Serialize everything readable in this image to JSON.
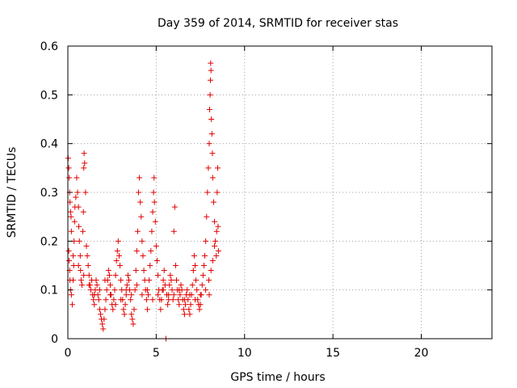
{
  "chart_data": {
    "type": "scatter",
    "title": "Day 359 of 2014, SRMTID for receiver stas",
    "xlabel": "GPS time / hours",
    "ylabel": "SRMTID / TECUs",
    "xlim": [
      0,
      24
    ],
    "ylim": [
      0,
      0.6
    ],
    "xticks": [
      0,
      5,
      10,
      15,
      20
    ],
    "xtick_labels": [
      "0",
      "5",
      "10",
      "15",
      "20"
    ],
    "yticks": [
      0,
      0.1,
      0.2,
      0.3,
      0.4,
      0.5,
      0.6
    ],
    "ytick_labels": [
      "0",
      "0.1",
      "0.2",
      "0.3",
      "0.4",
      "0.5",
      "0.6"
    ],
    "grid": true,
    "marker": "+",
    "color": "#e00000",
    "series": [
      {
        "name": "SRMTID",
        "points": [
          [
            0.02,
            0.37
          ],
          [
            0.05,
            0.35
          ],
          [
            0.08,
            0.33
          ],
          [
            0.1,
            0.3
          ],
          [
            0.12,
            0.28
          ],
          [
            0.15,
            0.26
          ],
          [
            0.18,
            0.25
          ],
          [
            0.2,
            0.22
          ],
          [
            0.05,
            0.18
          ],
          [
            0.07,
            0.16
          ],
          [
            0.1,
            0.14
          ],
          [
            0.12,
            0.12
          ],
          [
            0.15,
            0.1
          ],
          [
            0.2,
            0.09
          ],
          [
            0.25,
            0.07
          ],
          [
            0.3,
            0.12
          ],
          [
            0.33,
            0.15
          ],
          [
            0.35,
            0.2
          ],
          [
            0.38,
            0.24
          ],
          [
            0.4,
            0.27
          ],
          [
            0.45,
            0.29
          ],
          [
            0.5,
            0.33
          ],
          [
            0.55,
            0.3
          ],
          [
            0.6,
            0.27
          ],
          [
            0.62,
            0.23
          ],
          [
            0.65,
            0.2
          ],
          [
            0.7,
            0.17
          ],
          [
            0.72,
            0.14
          ],
          [
            0.75,
            0.12
          ],
          [
            0.8,
            0.11
          ],
          [
            0.85,
            0.22
          ],
          [
            0.88,
            0.26
          ],
          [
            0.9,
            0.35
          ],
          [
            0.92,
            0.38
          ],
          [
            0.95,
            0.36
          ],
          [
            1.0,
            0.3
          ],
          [
            1.05,
            0.19
          ],
          [
            1.1,
            0.17
          ],
          [
            1.15,
            0.15
          ],
          [
            1.2,
            0.13
          ],
          [
            1.25,
            0.11
          ],
          [
            1.3,
            0.1
          ],
          [
            1.35,
            0.12
          ],
          [
            1.4,
            0.09
          ],
          [
            1.45,
            0.08
          ],
          [
            1.5,
            0.07
          ],
          [
            1.55,
            0.1
          ],
          [
            1.6,
            0.12
          ],
          [
            1.65,
            0.11
          ],
          [
            1.7,
            0.09
          ],
          [
            1.75,
            0.08
          ],
          [
            1.8,
            0.06
          ],
          [
            1.85,
            0.05
          ],
          [
            1.9,
            0.04
          ],
          [
            1.95,
            0.03
          ],
          [
            2.0,
            0.02
          ],
          [
            2.05,
            0.04
          ],
          [
            2.1,
            0.06
          ],
          [
            2.15,
            0.08
          ],
          [
            2.2,
            0.1
          ],
          [
            2.25,
            0.12
          ],
          [
            2.3,
            0.14
          ],
          [
            2.35,
            0.13
          ],
          [
            2.4,
            0.11
          ],
          [
            2.45,
            0.09
          ],
          [
            2.5,
            0.07
          ],
          [
            2.55,
            0.06
          ],
          [
            2.6,
            0.08
          ],
          [
            2.65,
            0.1
          ],
          [
            2.7,
            0.13
          ],
          [
            2.75,
            0.16
          ],
          [
            2.8,
            0.18
          ],
          [
            2.85,
            0.2
          ],
          [
            2.9,
            0.17
          ],
          [
            2.95,
            0.15
          ],
          [
            3.0,
            0.12
          ],
          [
            3.05,
            0.1
          ],
          [
            3.1,
            0.08
          ],
          [
            3.15,
            0.06
          ],
          [
            3.2,
            0.05
          ],
          [
            3.25,
            0.07
          ],
          [
            3.3,
            0.09
          ],
          [
            3.35,
            0.11
          ],
          [
            3.4,
            0.13
          ],
          [
            3.45,
            0.12
          ],
          [
            3.5,
            0.1
          ],
          [
            3.55,
            0.08
          ],
          [
            3.6,
            0.05
          ],
          [
            3.65,
            0.04
          ],
          [
            3.7,
            0.03
          ],
          [
            3.75,
            0.06
          ],
          [
            3.8,
            0.1
          ],
          [
            3.85,
            0.14
          ],
          [
            3.9,
            0.18
          ],
          [
            3.95,
            0.22
          ],
          [
            4.0,
            0.3
          ],
          [
            4.05,
            0.33
          ],
          [
            4.1,
            0.28
          ],
          [
            4.15,
            0.25
          ],
          [
            4.2,
            0.2
          ],
          [
            4.25,
            0.17
          ],
          [
            4.3,
            0.14
          ],
          [
            4.35,
            0.12
          ],
          [
            4.4,
            0.1
          ],
          [
            4.45,
            0.08
          ],
          [
            4.5,
            0.06
          ],
          [
            4.55,
            0.09
          ],
          [
            4.6,
            0.12
          ],
          [
            4.65,
            0.15
          ],
          [
            4.7,
            0.18
          ],
          [
            4.75,
            0.22
          ],
          [
            4.8,
            0.26
          ],
          [
            4.85,
            0.3
          ],
          [
            4.88,
            0.33
          ],
          [
            4.9,
            0.28
          ],
          [
            4.95,
            0.24
          ],
          [
            5.0,
            0.19
          ],
          [
            5.05,
            0.16
          ],
          [
            5.1,
            0.13
          ],
          [
            5.15,
            0.1
          ],
          [
            5.2,
            0.08
          ],
          [
            5.25,
            0.06
          ],
          [
            5.3,
            0.08
          ],
          [
            5.35,
            0.1
          ],
          [
            5.4,
            0.12
          ],
          [
            5.45,
            0.14
          ],
          [
            5.5,
            0.11
          ],
          [
            5.55,
            0.0
          ],
          [
            5.6,
            0.09
          ],
          [
            5.65,
            0.07
          ],
          [
            5.7,
            0.09
          ],
          [
            5.75,
            0.11
          ],
          [
            5.8,
            0.13
          ],
          [
            5.85,
            0.12
          ],
          [
            5.9,
            0.1
          ],
          [
            5.95,
            0.08
          ],
          [
            6.0,
            0.22
          ],
          [
            6.05,
            0.27
          ],
          [
            6.1,
            0.15
          ],
          [
            6.15,
            0.12
          ],
          [
            6.2,
            0.1
          ],
          [
            6.25,
            0.08
          ],
          [
            6.3,
            0.07
          ],
          [
            6.35,
            0.09
          ],
          [
            6.4,
            0.11
          ],
          [
            6.45,
            0.1
          ],
          [
            6.5,
            0.08
          ],
          [
            6.55,
            0.06
          ],
          [
            6.6,
            0.05
          ],
          [
            6.65,
            0.07
          ],
          [
            6.7,
            0.09
          ],
          [
            6.75,
            0.1
          ],
          [
            6.8,
            0.08
          ],
          [
            6.85,
            0.06
          ],
          [
            6.9,
            0.05
          ],
          [
            6.95,
            0.07
          ],
          [
            7.0,
            0.09
          ],
          [
            7.05,
            0.11
          ],
          [
            7.1,
            0.14
          ],
          [
            7.15,
            0.17
          ],
          [
            7.2,
            0.15
          ],
          [
            7.25,
            0.12
          ],
          [
            7.3,
            0.1
          ],
          [
            7.35,
            0.08
          ],
          [
            7.4,
            0.07
          ],
          [
            7.45,
            0.06
          ],
          [
            7.5,
            0.07
          ],
          [
            7.55,
            0.09
          ],
          [
            7.6,
            0.11
          ],
          [
            7.65,
            0.13
          ],
          [
            7.7,
            0.15
          ],
          [
            7.75,
            0.17
          ],
          [
            7.8,
            0.2
          ],
          [
            7.85,
            0.25
          ],
          [
            7.9,
            0.3
          ],
          [
            7.95,
            0.35
          ],
          [
            8.0,
            0.4
          ],
          [
            8.02,
            0.47
          ],
          [
            8.05,
            0.5
          ],
          [
            8.07,
            0.53
          ],
          [
            8.08,
            0.565
          ],
          [
            8.1,
            0.55
          ],
          [
            8.12,
            0.45
          ],
          [
            8.15,
            0.42
          ],
          [
            8.18,
            0.38
          ],
          [
            8.2,
            0.33
          ],
          [
            8.25,
            0.28
          ],
          [
            8.3,
            0.24
          ],
          [
            8.35,
            0.2
          ],
          [
            8.4,
            0.17
          ],
          [
            8.42,
            0.22
          ],
          [
            8.45,
            0.3
          ],
          [
            8.48,
            0.35
          ],
          [
            8.5,
            0.23
          ],
          [
            8.52,
            0.18
          ],
          [
            8.0,
            0.09
          ],
          [
            7.98,
            0.12
          ],
          [
            8.1,
            0.14
          ],
          [
            8.2,
            0.16
          ],
          [
            8.3,
            0.19
          ],
          [
            0.3,
            0.17
          ],
          [
            0.6,
            0.15
          ],
          [
            0.9,
            0.13
          ],
          [
            1.2,
            0.11
          ],
          [
            1.5,
            0.09
          ],
          [
            1.8,
            0.1
          ],
          [
            2.1,
            0.12
          ],
          [
            2.4,
            0.09
          ],
          [
            2.7,
            0.07
          ],
          [
            3.0,
            0.08
          ],
          [
            3.3,
            0.1
          ],
          [
            3.6,
            0.09
          ],
          [
            3.9,
            0.11
          ],
          [
            4.2,
            0.09
          ],
          [
            4.5,
            0.1
          ],
          [
            4.8,
            0.08
          ],
          [
            5.1,
            0.09
          ],
          [
            5.4,
            0.1
          ],
          [
            5.7,
            0.08
          ],
          [
            6.0,
            0.09
          ],
          [
            6.3,
            0.1
          ],
          [
            6.6,
            0.08
          ],
          [
            6.9,
            0.09
          ],
          [
            7.2,
            0.08
          ],
          [
            7.5,
            0.09
          ],
          [
            7.8,
            0.1
          ]
        ]
      }
    ]
  }
}
